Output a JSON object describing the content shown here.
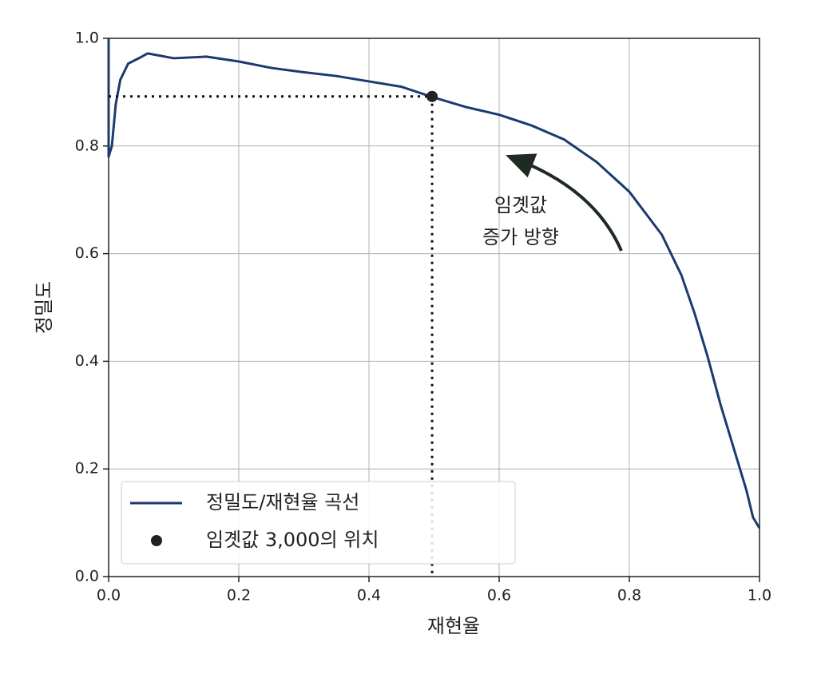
{
  "chart_data": {
    "type": "line",
    "xlabel": "재현율",
    "ylabel": "정밀도",
    "annotation": "임곗값\n증가 방향",
    "xlim": [
      0,
      1
    ],
    "ylim": [
      0,
      1
    ],
    "xticks": [
      {
        "value": 0,
        "label": "0.0"
      },
      {
        "value": 0.2,
        "label": "0.2"
      },
      {
        "value": 0.4,
        "label": "0.4"
      },
      {
        "value": 0.6,
        "label": "0.6"
      },
      {
        "value": 0.8,
        "label": "0.8"
      },
      {
        "value": 1,
        "label": "1.0"
      }
    ],
    "yticks": [
      {
        "value": 0,
        "label": "0.0"
      },
      {
        "value": 0.2,
        "label": "0.2"
      },
      {
        "value": 0.4,
        "label": "0.4"
      },
      {
        "value": 0.6,
        "label": "0.6"
      },
      {
        "value": 0.8,
        "label": "0.8"
      },
      {
        "value": 1,
        "label": "1.0"
      }
    ],
    "grid": true,
    "legend": "lower left",
    "series": [
      {
        "name": "정밀도/재현율 곡선",
        "type": "line",
        "color": "#1c3a6e",
        "x": [
          0,
          0,
          0.005,
          0.011,
          0.018,
          0.03,
          0.048,
          0.06,
          0.1,
          0.15,
          0.2,
          0.25,
          0.3,
          0.35,
          0.4,
          0.45,
          0.5,
          0.55,
          0.6,
          0.65,
          0.7,
          0.75,
          0.8,
          0.85,
          0.88,
          0.9,
          0.92,
          0.94,
          0.96,
          0.98,
          0.99,
          1
        ],
        "values": [
          1,
          0.78,
          0.8,
          0.878,
          0.923,
          0.953,
          0.964,
          0.972,
          0.963,
          0.966,
          0.957,
          0.945,
          0.937,
          0.93,
          0.92,
          0.91,
          0.89,
          0.872,
          0.858,
          0.838,
          0.812,
          0.77,
          0.715,
          0.635,
          0.56,
          0.49,
          0.41,
          0.32,
          0.24,
          0.16,
          0.11,
          0.09
        ]
      },
      {
        "name": "임곗값 3,000의 위치",
        "type": "scatter",
        "color": "#222222",
        "x": [
          0.497
        ],
        "values": [
          0.892
        ]
      }
    ]
  }
}
